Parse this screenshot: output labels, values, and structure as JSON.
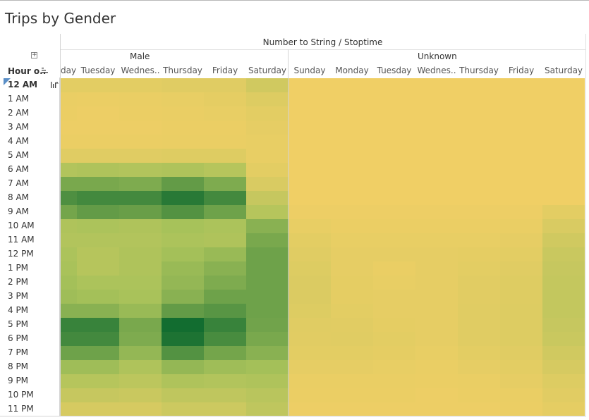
{
  "title": "Trips by Gender",
  "row_header": "Hour o..",
  "colors": {
    "low": "#f0cf65",
    "mid": "#a7c25a",
    "high": "#126d30"
  },
  "chart_data": {
    "type": "heatmap",
    "title": "Trips by Gender",
    "column_axis_title": "Number to String / Stoptime",
    "row_axis_title": "Hour o..",
    "groups": [
      {
        "name": "Male",
        "columns": [
          "Monday",
          "Tuesday",
          "Wednes..",
          "Thursday",
          "Friday",
          "Saturday"
        ],
        "visible_labels": [
          "day",
          "Tuesday",
          "Wednes..",
          "Thursday",
          "Friday",
          "Saturday"
        ]
      },
      {
        "name": "Unknown",
        "columns": [
          "Sunday",
          "Monday",
          "Tuesday",
          "Wednes..",
          "Thursday",
          "Friday",
          "Saturday"
        ],
        "visible_labels": [
          "Sunday",
          "Monday",
          "Tuesday",
          "Wednes..",
          "Thursday",
          "Friday",
          "Saturday"
        ]
      }
    ],
    "rows": [
      "12 AM",
      "1 AM",
      "2 AM",
      "3 AM",
      "4 AM",
      "5 AM",
      "6 AM",
      "7 AM",
      "8 AM",
      "9 AM",
      "10 AM",
      "11 AM",
      "12 PM",
      "1 PM",
      "2 PM",
      "3 PM",
      "4 PM",
      "5 PM",
      "6 PM",
      "7 PM",
      "8 PM",
      "9 PM",
      "10 PM",
      "11 PM"
    ],
    "value_scale": "relative intensity 0-1",
    "values": [
      [
        0.08,
        0.08,
        0.08,
        0.1,
        0.1,
        0.2,
        0.0,
        0.0,
        0.0,
        0.0,
        0.0,
        0.0,
        0.0
      ],
      [
        0.04,
        0.03,
        0.04,
        0.05,
        0.07,
        0.12,
        0.0,
        0.0,
        0.0,
        0.0,
        0.0,
        0.0,
        0.0
      ],
      [
        0.03,
        0.02,
        0.03,
        0.04,
        0.05,
        0.08,
        0.0,
        0.0,
        0.0,
        0.0,
        0.0,
        0.0,
        0.0
      ],
      [
        0.02,
        0.02,
        0.02,
        0.03,
        0.03,
        0.06,
        0.0,
        0.0,
        0.0,
        0.0,
        0.0,
        0.0,
        0.0
      ],
      [
        0.03,
        0.03,
        0.03,
        0.04,
        0.04,
        0.05,
        0.0,
        0.0,
        0.0,
        0.0,
        0.0,
        0.0,
        0.0
      ],
      [
        0.1,
        0.1,
        0.1,
        0.11,
        0.11,
        0.05,
        0.0,
        0.0,
        0.0,
        0.0,
        0.0,
        0.0,
        0.0
      ],
      [
        0.38,
        0.4,
        0.38,
        0.4,
        0.36,
        0.08,
        0.0,
        0.0,
        0.0,
        0.0,
        0.0,
        0.0,
        0.0
      ],
      [
        0.62,
        0.62,
        0.6,
        0.7,
        0.6,
        0.14,
        0.0,
        0.0,
        0.0,
        0.0,
        0.0,
        0.0,
        0.0
      ],
      [
        0.78,
        0.82,
        0.82,
        0.92,
        0.82,
        0.26,
        0.0,
        0.0,
        0.0,
        0.0,
        0.0,
        0.0,
        0.0
      ],
      [
        0.64,
        0.7,
        0.68,
        0.76,
        0.66,
        0.36,
        0.02,
        0.02,
        0.02,
        0.02,
        0.02,
        0.02,
        0.08
      ],
      [
        0.4,
        0.42,
        0.4,
        0.45,
        0.42,
        0.56,
        0.05,
        0.03,
        0.03,
        0.03,
        0.03,
        0.04,
        0.14
      ],
      [
        0.38,
        0.38,
        0.38,
        0.42,
        0.4,
        0.62,
        0.08,
        0.05,
        0.05,
        0.05,
        0.05,
        0.06,
        0.2
      ],
      [
        0.42,
        0.36,
        0.4,
        0.46,
        0.5,
        0.66,
        0.1,
        0.06,
        0.06,
        0.06,
        0.07,
        0.08,
        0.24
      ],
      [
        0.44,
        0.36,
        0.4,
        0.5,
        0.56,
        0.66,
        0.12,
        0.06,
        0.04,
        0.06,
        0.08,
        0.1,
        0.26
      ],
      [
        0.46,
        0.42,
        0.42,
        0.52,
        0.6,
        0.66,
        0.13,
        0.07,
        0.05,
        0.06,
        0.09,
        0.11,
        0.27
      ],
      [
        0.48,
        0.46,
        0.44,
        0.56,
        0.66,
        0.66,
        0.13,
        0.07,
        0.06,
        0.06,
        0.09,
        0.11,
        0.28
      ],
      [
        0.56,
        0.56,
        0.5,
        0.7,
        0.74,
        0.66,
        0.12,
        0.08,
        0.06,
        0.06,
        0.1,
        0.12,
        0.28
      ],
      [
        0.86,
        0.86,
        0.62,
        1.0,
        0.86,
        0.65,
        0.1,
        0.09,
        0.07,
        0.06,
        0.1,
        0.12,
        0.26
      ],
      [
        0.82,
        0.82,
        0.6,
        0.96,
        0.8,
        0.62,
        0.09,
        0.1,
        0.08,
        0.06,
        0.1,
        0.12,
        0.24
      ],
      [
        0.66,
        0.66,
        0.52,
        0.76,
        0.64,
        0.56,
        0.08,
        0.08,
        0.07,
        0.05,
        0.08,
        0.1,
        0.2
      ],
      [
        0.48,
        0.48,
        0.4,
        0.52,
        0.48,
        0.46,
        0.06,
        0.06,
        0.05,
        0.04,
        0.06,
        0.08,
        0.16
      ],
      [
        0.36,
        0.36,
        0.32,
        0.4,
        0.38,
        0.4,
        0.04,
        0.04,
        0.04,
        0.03,
        0.04,
        0.06,
        0.12
      ],
      [
        0.26,
        0.26,
        0.24,
        0.3,
        0.3,
        0.34,
        0.03,
        0.03,
        0.03,
        0.02,
        0.03,
        0.04,
        0.09
      ],
      [
        0.16,
        0.16,
        0.16,
        0.22,
        0.22,
        0.3,
        0.02,
        0.02,
        0.02,
        0.02,
        0.02,
        0.03,
        0.07
      ]
    ]
  }
}
